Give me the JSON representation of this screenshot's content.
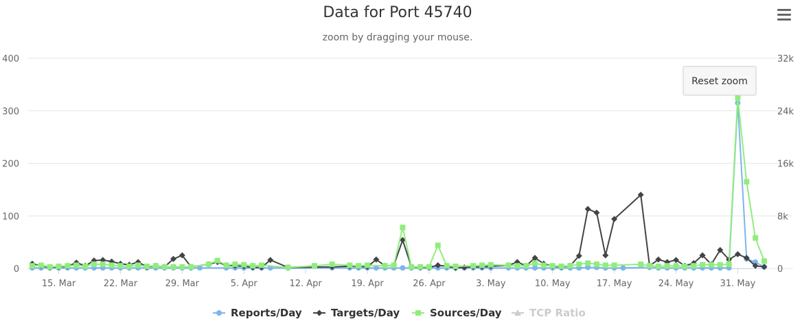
{
  "chart_data": {
    "type": "line",
    "title": "Data for Port 45740",
    "subtitle": "zoom by dragging your mouse.",
    "xlabel": "",
    "ylabel_left": "",
    "ylabel_right": "",
    "x_range": [
      "2024-03-12",
      "2024-06-02"
    ],
    "x_tick_labels": [
      "15. Mar",
      "22. Mar",
      "29. Mar",
      "5. Apr",
      "12. Apr",
      "19. Apr",
      "26. Apr",
      "3. May",
      "10. May",
      "17. May",
      "24. May",
      "31. May"
    ],
    "y_left_range": [
      0,
      400
    ],
    "y_left_ticks": [
      "0",
      "100",
      "200",
      "300",
      "400"
    ],
    "y_right_range": [
      0,
      32000
    ],
    "y_right_ticks": [
      "0",
      "8k",
      "16k",
      "24k",
      "32k"
    ],
    "grid": true,
    "legend_position": "bottom",
    "series": [
      {
        "name": "Reports/Day",
        "axis": "left",
        "color": "#7cb5ec",
        "marker": "circle",
        "points": [
          [
            "2024-03-12",
            1
          ],
          [
            "2024-03-13",
            1
          ],
          [
            "2024-03-14",
            1
          ],
          [
            "2024-03-15",
            1
          ],
          [
            "2024-03-16",
            1
          ],
          [
            "2024-03-17",
            1
          ],
          [
            "2024-03-18",
            1
          ],
          [
            "2024-03-19",
            1
          ],
          [
            "2024-03-20",
            1
          ],
          [
            "2024-03-21",
            1
          ],
          [
            "2024-03-22",
            1
          ],
          [
            "2024-03-23",
            1
          ],
          [
            "2024-03-24",
            1
          ],
          [
            "2024-03-25",
            1
          ],
          [
            "2024-03-26",
            1
          ],
          [
            "2024-03-27",
            1
          ],
          [
            "2024-03-28",
            1
          ],
          [
            "2024-03-29",
            1
          ],
          [
            "2024-03-30",
            1
          ],
          [
            "2024-03-31",
            1
          ],
          [
            "2024-04-03",
            1
          ],
          [
            "2024-04-04",
            1
          ],
          [
            "2024-04-05",
            1
          ],
          [
            "2024-04-06",
            1
          ],
          [
            "2024-04-07",
            1
          ],
          [
            "2024-04-08",
            1
          ],
          [
            "2024-04-10",
            1
          ],
          [
            "2024-04-15",
            1
          ],
          [
            "2024-04-17",
            1
          ],
          [
            "2024-04-18",
            1
          ],
          [
            "2024-04-19",
            1
          ],
          [
            "2024-04-20",
            1
          ],
          [
            "2024-04-21",
            1
          ],
          [
            "2024-04-22",
            1
          ],
          [
            "2024-04-23",
            1
          ],
          [
            "2024-04-24",
            1
          ],
          [
            "2024-04-25",
            1
          ],
          [
            "2024-04-26",
            1
          ],
          [
            "2024-04-27",
            1
          ],
          [
            "2024-04-28",
            1
          ],
          [
            "2024-04-29",
            1
          ],
          [
            "2024-04-30",
            1
          ],
          [
            "2024-05-01",
            1
          ],
          [
            "2024-05-02",
            1
          ],
          [
            "2024-05-03",
            1
          ],
          [
            "2024-05-05",
            1
          ],
          [
            "2024-05-06",
            1
          ],
          [
            "2024-05-07",
            1
          ],
          [
            "2024-05-08",
            1
          ],
          [
            "2024-05-09",
            1
          ],
          [
            "2024-05-10",
            1
          ],
          [
            "2024-05-11",
            1
          ],
          [
            "2024-05-12",
            1
          ],
          [
            "2024-05-13",
            1
          ],
          [
            "2024-05-14",
            2
          ],
          [
            "2024-05-15",
            2
          ],
          [
            "2024-05-16",
            1
          ],
          [
            "2024-05-17",
            1
          ],
          [
            "2024-05-18",
            1
          ],
          [
            "2024-05-21",
            2
          ],
          [
            "2024-05-22",
            1
          ],
          [
            "2024-05-23",
            1
          ],
          [
            "2024-05-24",
            1
          ],
          [
            "2024-05-25",
            1
          ],
          [
            "2024-05-26",
            1
          ],
          [
            "2024-05-27",
            1
          ],
          [
            "2024-05-28",
            1
          ],
          [
            "2024-05-29",
            1
          ],
          [
            "2024-05-30",
            1
          ],
          [
            "2024-05-31",
            315
          ],
          [
            "2024-06-01",
            18
          ],
          [
            "2024-06-02",
            12
          ],
          [
            "2024-06-03",
            3
          ]
        ]
      },
      {
        "name": "Targets/Day",
        "axis": "left",
        "color": "#434348",
        "marker": "diamond",
        "points": [
          [
            "2024-03-12",
            9
          ],
          [
            "2024-03-13",
            5
          ],
          [
            "2024-03-14",
            2
          ],
          [
            "2024-03-15",
            3
          ],
          [
            "2024-03-16",
            4
          ],
          [
            "2024-03-17",
            11
          ],
          [
            "2024-03-18",
            5
          ],
          [
            "2024-03-19",
            15
          ],
          [
            "2024-03-20",
            16
          ],
          [
            "2024-03-21",
            13
          ],
          [
            "2024-03-22",
            9
          ],
          [
            "2024-03-23",
            7
          ],
          [
            "2024-03-24",
            12
          ],
          [
            "2024-03-25",
            3
          ],
          [
            "2024-03-26",
            5
          ],
          [
            "2024-03-27",
            3
          ],
          [
            "2024-03-28",
            18
          ],
          [
            "2024-03-29",
            25
          ],
          [
            "2024-03-30",
            3
          ],
          [
            "2024-04-01",
            8
          ],
          [
            "2024-04-02",
            12
          ],
          [
            "2024-04-03",
            6
          ],
          [
            "2024-04-04",
            5
          ],
          [
            "2024-04-05",
            4
          ],
          [
            "2024-04-06",
            2
          ],
          [
            "2024-04-07",
            2
          ],
          [
            "2024-04-08",
            16
          ],
          [
            "2024-04-10",
            2
          ],
          [
            "2024-04-15",
            3
          ],
          [
            "2024-04-17",
            4
          ],
          [
            "2024-04-18",
            4
          ],
          [
            "2024-04-19",
            3
          ],
          [
            "2024-04-20",
            17
          ],
          [
            "2024-04-21",
            5
          ],
          [
            "2024-04-22",
            6
          ],
          [
            "2024-04-23",
            54
          ],
          [
            "2024-04-24",
            3
          ],
          [
            "2024-04-25",
            2
          ],
          [
            "2024-04-26",
            2
          ],
          [
            "2024-04-27",
            6
          ],
          [
            "2024-04-28",
            4
          ],
          [
            "2024-04-29",
            1
          ],
          [
            "2024-04-30",
            2
          ],
          [
            "2024-05-01",
            3
          ],
          [
            "2024-05-02",
            3
          ],
          [
            "2024-05-03",
            4
          ],
          [
            "2024-05-05",
            6
          ],
          [
            "2024-05-06",
            12
          ],
          [
            "2024-05-07",
            5
          ],
          [
            "2024-05-08",
            20
          ],
          [
            "2024-05-09",
            9
          ],
          [
            "2024-05-10",
            4
          ],
          [
            "2024-05-11",
            3
          ],
          [
            "2024-05-12",
            5
          ],
          [
            "2024-05-13",
            24
          ],
          [
            "2024-05-14",
            113
          ],
          [
            "2024-05-15",
            106
          ],
          [
            "2024-05-16",
            25
          ],
          [
            "2024-05-17",
            94
          ],
          [
            "2024-05-20",
            140
          ],
          [
            "2024-05-21",
            5
          ],
          [
            "2024-05-22",
            17
          ],
          [
            "2024-05-23",
            12
          ],
          [
            "2024-05-24",
            16
          ],
          [
            "2024-05-25",
            5
          ],
          [
            "2024-05-26",
            10
          ],
          [
            "2024-05-27",
            25
          ],
          [
            "2024-05-28",
            8
          ],
          [
            "2024-05-29",
            35
          ],
          [
            "2024-05-30",
            17
          ],
          [
            "2024-05-31",
            27
          ],
          [
            "2024-06-01",
            20
          ],
          [
            "2024-06-02",
            5
          ],
          [
            "2024-06-03",
            3
          ]
        ]
      },
      {
        "name": "Sources/Day",
        "axis": "left",
        "color": "#90ed7d",
        "marker": "square",
        "points": [
          [
            "2024-03-12",
            5
          ],
          [
            "2024-03-13",
            6
          ],
          [
            "2024-03-14",
            3
          ],
          [
            "2024-03-15",
            4
          ],
          [
            "2024-03-16",
            5
          ],
          [
            "2024-03-17",
            6
          ],
          [
            "2024-03-18",
            4
          ],
          [
            "2024-03-19",
            8
          ],
          [
            "2024-03-20",
            8
          ],
          [
            "2024-03-21",
            6
          ],
          [
            "2024-03-22",
            5
          ],
          [
            "2024-03-23",
            4
          ],
          [
            "2024-03-24",
            6
          ],
          [
            "2024-03-25",
            4
          ],
          [
            "2024-03-26",
            5
          ],
          [
            "2024-03-27",
            3
          ],
          [
            "2024-03-28",
            3
          ],
          [
            "2024-03-29",
            3
          ],
          [
            "2024-03-30",
            3
          ],
          [
            "2024-04-01",
            8
          ],
          [
            "2024-04-02",
            15
          ],
          [
            "2024-04-03",
            6
          ],
          [
            "2024-04-04",
            8
          ],
          [
            "2024-04-05",
            7
          ],
          [
            "2024-04-06",
            5
          ],
          [
            "2024-04-07",
            6
          ],
          [
            "2024-04-10",
            2
          ],
          [
            "2024-04-13",
            5
          ],
          [
            "2024-04-15",
            8
          ],
          [
            "2024-04-17",
            6
          ],
          [
            "2024-04-18",
            5
          ],
          [
            "2024-04-19",
            6
          ],
          [
            "2024-04-21",
            5
          ],
          [
            "2024-04-22",
            6
          ],
          [
            "2024-04-23",
            78
          ],
          [
            "2024-04-24",
            3
          ],
          [
            "2024-04-25",
            3
          ],
          [
            "2024-04-26",
            3
          ],
          [
            "2024-04-27",
            44
          ],
          [
            "2024-04-28",
            5
          ],
          [
            "2024-04-29",
            4
          ],
          [
            "2024-05-01",
            5
          ],
          [
            "2024-05-02",
            6
          ],
          [
            "2024-05-03",
            7
          ],
          [
            "2024-05-05",
            6
          ],
          [
            "2024-05-06",
            5
          ],
          [
            "2024-05-07",
            5
          ],
          [
            "2024-05-08",
            10
          ],
          [
            "2024-05-09",
            6
          ],
          [
            "2024-05-10",
            5
          ],
          [
            "2024-05-11",
            4
          ],
          [
            "2024-05-12",
            5
          ],
          [
            "2024-05-13",
            8
          ],
          [
            "2024-05-14",
            10
          ],
          [
            "2024-05-15",
            8
          ],
          [
            "2024-05-16",
            6
          ],
          [
            "2024-05-17",
            6
          ],
          [
            "2024-05-20",
            8
          ],
          [
            "2024-05-21",
            5
          ],
          [
            "2024-05-22",
            4
          ],
          [
            "2024-05-23",
            5
          ],
          [
            "2024-05-24",
            5
          ],
          [
            "2024-05-25",
            4
          ],
          [
            "2024-05-26",
            5
          ],
          [
            "2024-05-27",
            7
          ],
          [
            "2024-05-28",
            7
          ],
          [
            "2024-05-29",
            7
          ],
          [
            "2024-05-30",
            8
          ],
          [
            "2024-05-31",
            325
          ],
          [
            "2024-06-01",
            165
          ],
          [
            "2024-06-02",
            58
          ],
          [
            "2024-06-03",
            14
          ]
        ]
      },
      {
        "name": "TCP Ratio",
        "axis": "right",
        "color": "#cccccc",
        "marker": "triangle",
        "hidden": true,
        "points": []
      }
    ]
  },
  "ui": {
    "reset_zoom_label": "Reset zoom",
    "menu_icon": "hamburger-menu-icon"
  }
}
